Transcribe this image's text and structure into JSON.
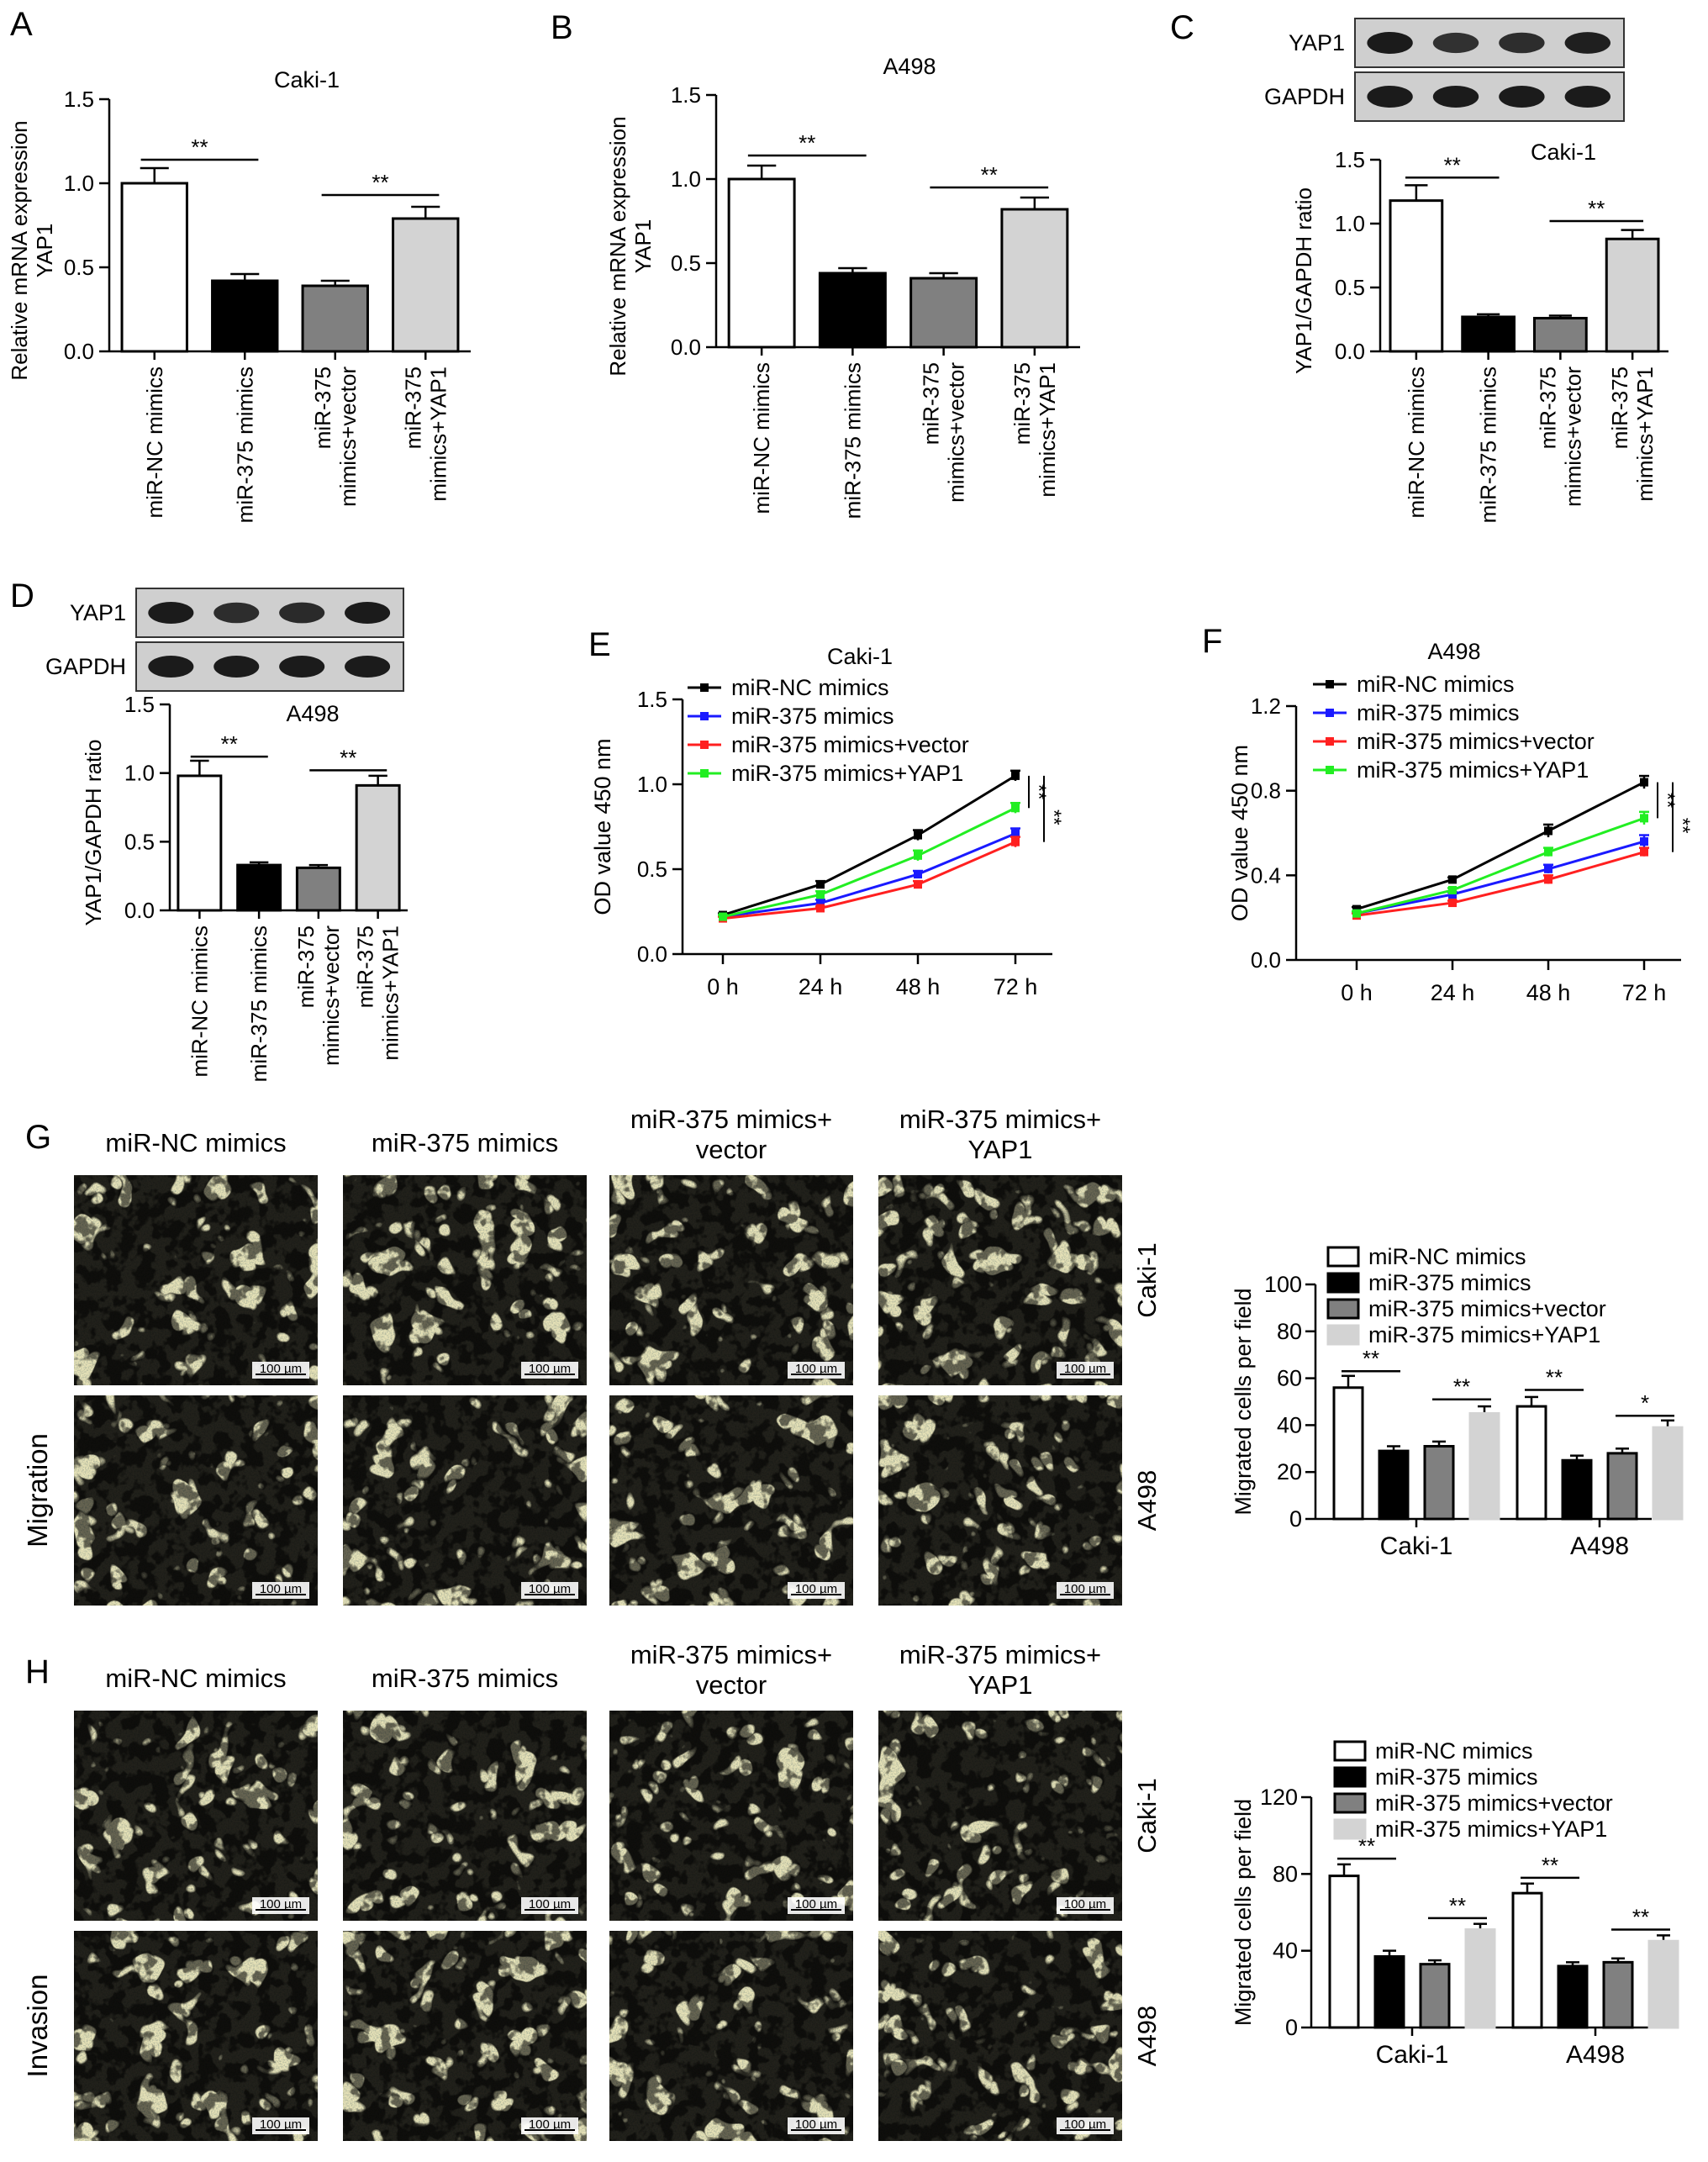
{
  "panels": {
    "A": "A",
    "B": "B",
    "C": "C",
    "D": "D",
    "E": "E",
    "F": "F",
    "G": "G",
    "H": "H"
  },
  "groups": [
    "miR-NC mimics",
    "miR-375 mimics",
    "miR-375 mimics+vector",
    "miR-375 mimics+YAP1"
  ],
  "group_ticks": [
    [
      "miR-NC mimics"
    ],
    [
      "miR-375 mimics"
    ],
    [
      "miR-375",
      "mimics+vector"
    ],
    [
      "miR-375",
      "mimics+YAP1"
    ]
  ],
  "colors": {
    "bar_fills": [
      "#ffffff",
      "#000000",
      "#808080",
      "#d3d3d3"
    ],
    "line_colors": [
      "#000000",
      "#1a1aff",
      "#ff2020",
      "#22ee22"
    ]
  },
  "blots": {
    "C": {
      "rows": [
        "YAP1",
        "GAPDH"
      ]
    },
    "D": {
      "rows": [
        "YAP1",
        "GAPDH"
      ]
    }
  },
  "images": {
    "G": {
      "columns": [
        "miR-NC mimics",
        "miR-375 mimics",
        "miR-375 mimics+\nvector",
        "miR-375 mimics+\nYAP1"
      ],
      "row_title": "Migration",
      "rows": [
        "Caki-1",
        "A498"
      ],
      "scalebar": "100 µm",
      "stain": "#6a3a9e"
    },
    "H": {
      "columns": [
        "miR-NC mimics",
        "miR-375 mimics",
        "miR-375 mimics+\nvector",
        "miR-375 mimics+\nYAP1"
      ],
      "row_title": "Invasion",
      "rows": [
        "Caki-1",
        "A498"
      ],
      "scalebar": "100 µm",
      "stain": "#7a3a9a"
    }
  },
  "chart_data": [
    {
      "id": "A",
      "type": "bar",
      "title": "Caki-1",
      "ylabel": "Relative mRNA expression\nYAP1",
      "categories": [
        "miR-NC mimics",
        "miR-375 mimics",
        "miR-375 mimics+vector",
        "miR-375 mimics+YAP1"
      ],
      "values": [
        1.0,
        0.42,
        0.39,
        0.79
      ],
      "errors": [
        0.09,
        0.04,
        0.03,
        0.07
      ],
      "ylim": [
        0,
        1.5
      ],
      "yticks": [
        "0.0",
        "0.5",
        "1.0",
        "1.5"
      ],
      "sig": [
        {
          "from": 0,
          "to": 1,
          "label": "**",
          "y": 1.14
        },
        {
          "from": 2,
          "to": 3,
          "label": "**",
          "y": 0.93
        }
      ]
    },
    {
      "id": "B",
      "type": "bar",
      "title": "A498",
      "ylabel": "Relative mRNA expression\nYAP1",
      "categories": [
        "miR-NC mimics",
        "miR-375 mimics",
        "miR-375 mimics+vector",
        "miR-375 mimics+YAP1"
      ],
      "values": [
        1.0,
        0.44,
        0.41,
        0.82
      ],
      "errors": [
        0.08,
        0.03,
        0.03,
        0.07
      ],
      "ylim": [
        0,
        1.5
      ],
      "yticks": [
        "0.0",
        "0.5",
        "1.0",
        "1.5"
      ],
      "sig": [
        {
          "from": 0,
          "to": 1,
          "label": "**",
          "y": 1.14
        },
        {
          "from": 2,
          "to": 3,
          "label": "**",
          "y": 0.95
        }
      ]
    },
    {
      "id": "C",
      "type": "bar",
      "title": "Caki-1",
      "ylabel": "YAP1/GAPDH ratio",
      "categories": [
        "miR-NC mimics",
        "miR-375 mimics",
        "miR-375 mimics+vector",
        "miR-375 mimics+YAP1"
      ],
      "values": [
        1.18,
        0.27,
        0.26,
        0.88
      ],
      "errors": [
        0.12,
        0.02,
        0.02,
        0.07
      ],
      "ylim": [
        0,
        1.5
      ],
      "yticks": [
        "0.0",
        "0.5",
        "1.0",
        "1.5"
      ],
      "sig": [
        {
          "from": 0,
          "to": 1,
          "label": "**",
          "y": 1.36
        },
        {
          "from": 2,
          "to": 3,
          "label": "**",
          "y": 1.02
        }
      ]
    },
    {
      "id": "D",
      "type": "bar",
      "title": "A498",
      "ylabel": "YAP1/GAPDH ratio",
      "categories": [
        "miR-NC mimics",
        "miR-375 mimics",
        "miR-375 mimics+vector",
        "miR-375 mimics+YAP1"
      ],
      "values": [
        0.98,
        0.33,
        0.31,
        0.91
      ],
      "errors": [
        0.11,
        0.02,
        0.02,
        0.07
      ],
      "ylim": [
        0,
        1.5
      ],
      "yticks": [
        "0.0",
        "0.5",
        "1.0",
        "1.5"
      ],
      "sig": [
        {
          "from": 0,
          "to": 1,
          "label": "**",
          "y": 1.12
        },
        {
          "from": 2,
          "to": 3,
          "label": "**",
          "y": 1.02
        }
      ]
    },
    {
      "id": "E",
      "type": "line",
      "title": "Caki-1",
      "ylabel": "OD value 450 nm",
      "x": [
        "0 h",
        "24 h",
        "48 h",
        "72 h"
      ],
      "ylim": [
        0,
        1.5
      ],
      "yticks": [
        "0.0",
        "0.5",
        "1.0",
        "1.5"
      ],
      "series": [
        {
          "name": "miR-NC mimics",
          "values": [
            0.23,
            0.41,
            0.7,
            1.05
          ],
          "errors": [
            0.01,
            0.02,
            0.03,
            0.03
          ]
        },
        {
          "name": "miR-375 mimics",
          "values": [
            0.22,
            0.3,
            0.47,
            0.71
          ],
          "errors": [
            0.01,
            0.02,
            0.02,
            0.03
          ]
        },
        {
          "name": "miR-375 mimics+vector",
          "values": [
            0.21,
            0.27,
            0.41,
            0.66
          ],
          "errors": [
            0.01,
            0.01,
            0.02,
            0.03
          ]
        },
        {
          "name": "miR-375 mimics+YAP1",
          "values": [
            0.22,
            0.35,
            0.58,
            0.86
          ],
          "errors": [
            0.01,
            0.02,
            0.03,
            0.03
          ]
        }
      ],
      "sig_labels": [
        "**",
        "**"
      ]
    },
    {
      "id": "F",
      "type": "line",
      "title": "A498",
      "ylabel": "OD value 450 nm",
      "x": [
        "0 h",
        "24 h",
        "48 h",
        "72 h"
      ],
      "ylim": [
        0,
        1.2
      ],
      "yticks": [
        "0.0",
        "0.4",
        "0.8",
        "1.2"
      ],
      "series": [
        {
          "name": "miR-NC mimics",
          "values": [
            0.24,
            0.38,
            0.61,
            0.84
          ],
          "errors": [
            0.01,
            0.01,
            0.03,
            0.03
          ]
        },
        {
          "name": "miR-375 mimics",
          "values": [
            0.22,
            0.31,
            0.43,
            0.56
          ],
          "errors": [
            0.01,
            0.01,
            0.02,
            0.03
          ]
        },
        {
          "name": "miR-375 mimics+vector",
          "values": [
            0.21,
            0.27,
            0.38,
            0.51
          ],
          "errors": [
            0.01,
            0.01,
            0.02,
            0.02
          ]
        },
        {
          "name": "miR-375 mimics+YAP1",
          "values": [
            0.22,
            0.33,
            0.51,
            0.67
          ],
          "errors": [
            0.01,
            0.01,
            0.02,
            0.03
          ]
        }
      ],
      "sig_labels": [
        "**",
        "**"
      ]
    },
    {
      "id": "G",
      "type": "bar",
      "ylabel": "Migrated cells per field",
      "categories": [
        "Caki-1",
        "A498"
      ],
      "ylim": [
        0,
        100
      ],
      "yticks": [
        "0",
        "20",
        "40",
        "60",
        "80",
        "100"
      ],
      "series": [
        {
          "name": "miR-NC mimics",
          "values": [
            56,
            48
          ],
          "errors": [
            5,
            4
          ]
        },
        {
          "name": "miR-375 mimics",
          "values": [
            29,
            25
          ],
          "errors": [
            2,
            2
          ]
        },
        {
          "name": "miR-375 mimics+vector",
          "values": [
            31,
            28
          ],
          "errors": [
            2,
            2
          ]
        },
        {
          "name": "miR-375 mimics+YAP1",
          "values": [
            45,
            39
          ],
          "errors": [
            3,
            3
          ]
        }
      ],
      "sig": [
        {
          "cat": 0,
          "from": 0,
          "to": 1,
          "label": "**",
          "y": 63
        },
        {
          "cat": 0,
          "from": 2,
          "to": 3,
          "label": "**",
          "y": 51
        },
        {
          "cat": 1,
          "from": 0,
          "to": 1,
          "label": "**",
          "y": 55
        },
        {
          "cat": 1,
          "from": 2,
          "to": 3,
          "label": "*",
          "y": 44
        }
      ]
    },
    {
      "id": "H",
      "type": "bar",
      "ylabel": "Migrated cells per field",
      "categories": [
        "Caki-1",
        "A498"
      ],
      "ylim": [
        0,
        120
      ],
      "yticks": [
        "0",
        "40",
        "80",
        "120"
      ],
      "series": [
        {
          "name": "miR-NC mimics",
          "values": [
            79,
            70
          ],
          "errors": [
            6,
            5
          ]
        },
        {
          "name": "miR-375 mimics",
          "values": [
            37,
            32
          ],
          "errors": [
            3,
            2
          ]
        },
        {
          "name": "miR-375 mimics+vector",
          "values": [
            33,
            34
          ],
          "errors": [
            2,
            2
          ]
        },
        {
          "name": "miR-375 mimics+YAP1",
          "values": [
            51,
            45
          ],
          "errors": [
            3,
            3
          ]
        }
      ],
      "sig": [
        {
          "cat": 0,
          "from": 0,
          "to": 1,
          "label": "**",
          "y": 88
        },
        {
          "cat": 0,
          "from": 2,
          "to": 3,
          "label": "**",
          "y": 57
        },
        {
          "cat": 1,
          "from": 0,
          "to": 1,
          "label": "**",
          "y": 78
        },
        {
          "cat": 1,
          "from": 2,
          "to": 3,
          "label": "**",
          "y": 51
        }
      ]
    }
  ]
}
